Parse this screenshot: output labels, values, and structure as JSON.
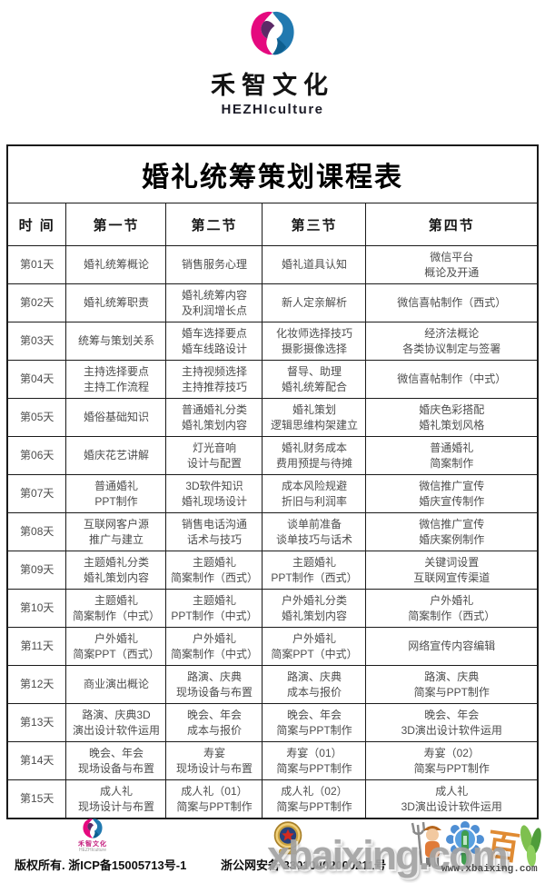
{
  "brand": {
    "name": "禾智文化",
    "subtitle": "HEZHIculture"
  },
  "table": {
    "title": "婚礼统筹策划课程表",
    "headers": [
      "时 间",
      "第一节",
      "第二节",
      "第三节",
      "第四节"
    ],
    "rows": [
      {
        "day": "第01天",
        "cells": [
          "婚礼统筹概论",
          "销售服务心理",
          "婚礼道具认知",
          "微信平台\n概论及开通"
        ]
      },
      {
        "day": "第02天",
        "cells": [
          "婚礼统筹职责",
          "婚礼统筹内容\n及利润增长点",
          "新人定亲解析",
          "微信喜帖制作（西式）"
        ]
      },
      {
        "day": "第03天",
        "cells": [
          "统筹与策划关系",
          "婚车选择要点\n婚车线路设计",
          "化妆师选择技巧\n摄影摄像选择",
          "经济法概论\n各类协议制定与签署"
        ]
      },
      {
        "day": "第04天",
        "cells": [
          "主持选择要点\n主持工作流程",
          "主持视频选择\n主持推荐技巧",
          "督导、助理\n婚礼统筹配合",
          "微信喜帖制作（中式）"
        ]
      },
      {
        "day": "第05天",
        "cells": [
          "婚俗基础知识",
          "普通婚礼分类\n婚礼策划内容",
          "婚礼策划\n逻辑思维构架建立",
          "婚庆色彩搭配\n婚礼策划风格"
        ]
      },
      {
        "day": "第06天",
        "cells": [
          "婚庆花艺讲解",
          "灯光音响\n设计与配置",
          "婚礼财务成本\n费用预提与待摊",
          "普通婚礼\n简案制作"
        ]
      },
      {
        "day": "第07天",
        "cells": [
          "普通婚礼\nPPT制作",
          "3D软件知识\n婚礼现场设计",
          "成本风险规避\n折旧与利润率",
          "微信推广宣传\n婚庆宣传制作"
        ]
      },
      {
        "day": "第08天",
        "cells": [
          "互联网客户源\n推广与建立",
          "销售电话沟通\n话术与技巧",
          "谈单前准备\n谈单技巧与话术",
          "微信推广宣传\n婚庆案例制作"
        ]
      },
      {
        "day": "第09天",
        "cells": [
          "主题婚礼分类\n婚礼策划内容",
          "主题婚礼\n简案制作（西式）",
          "主题婚礼\nPPT制作（西式）",
          "关键词设置\n互联网宣传渠道"
        ]
      },
      {
        "day": "第10天",
        "cells": [
          "主题婚礼\n简案制作（中式）",
          "主题婚礼\nPPT制作（中式）",
          "户外婚礼分类\n婚礼策划内容",
          "户外婚礼\n简案制作（西式）"
        ]
      },
      {
        "day": "第11天",
        "cells": [
          "户外婚礼\n简案PPT（西式）",
          "户外婚礼\n简案制作（中式）",
          "户外婚礼\n简案PPT（中式）",
          "网络宣传内容编辑"
        ]
      },
      {
        "day": "第12天",
        "cells": [
          "商业演出概论",
          "路演、庆典\n现场设备与布置",
          "路演、庆典\n成本与报价",
          "路演、庆典\n简案与PPT制作"
        ]
      },
      {
        "day": "第13天",
        "cells": [
          "路演、庆典3D\n演出设计软件运用",
          "晚会、年会\n成本与报价",
          "晚会、年会\n简案与PPT制作",
          "晚会、年会\n3D演出设计软件运用"
        ]
      },
      {
        "day": "第14天",
        "cells": [
          "晚会、年会\n现场设备与布置",
          "寿宴\n现场设计与布置",
          "寿宴（01）\n简案与PPT制作",
          "寿宴（02）\n简案与PPT制作"
        ]
      },
      {
        "day": "第15天",
        "cells": [
          "成人礼\n现场设计与布置",
          "成人礼（01）\n简案与PPT制作",
          "成人礼（02）\n简案与PPT制作",
          "成人礼\n3D演出设计软件运用"
        ]
      }
    ]
  },
  "footer": {
    "mini_logo_name": "禾智文化",
    "mini_logo_subtitle": "HEZHIculture",
    "copyright": "版权所有. 浙ICP备15005713号-1",
    "security": "浙公网安备 33010402000211号",
    "mascot_glyph": "百"
  },
  "watermark": {
    "large": "xbaixing.com",
    "small": "www.xbaixing.com"
  },
  "colors": {
    "brand_pink": "#e5097f",
    "brand_purple": "#5c2a67",
    "brand_blue": "#2179b0",
    "brand_blue_dark": "#0e5f8f",
    "watermark_gray": "#a3a3a3"
  }
}
